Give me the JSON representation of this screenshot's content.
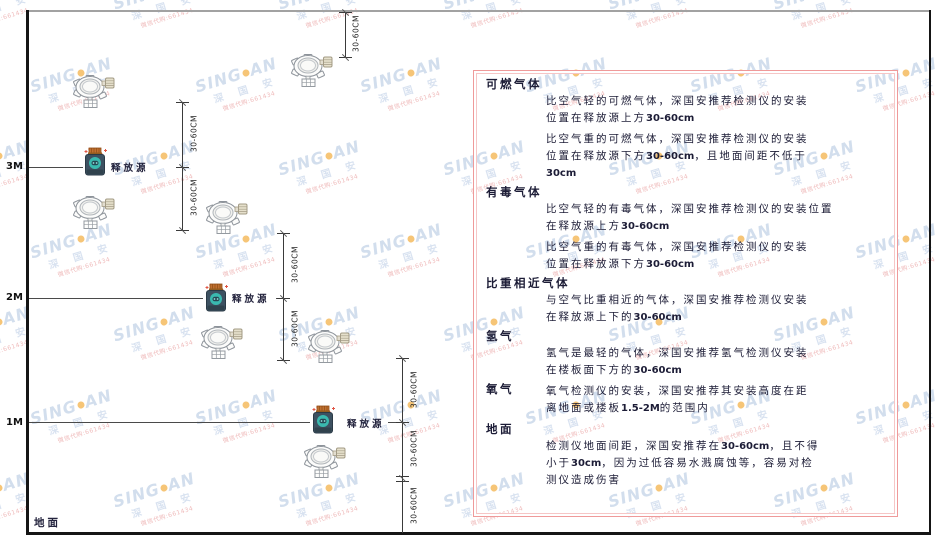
{
  "watermark": {
    "brand_a": "SING",
    "brand_b": "AN",
    "company": "深 国 安",
    "contact": "微信代购:661434"
  },
  "diagram": {
    "dimension_label": "30-60CM",
    "release_source_label": "释放源",
    "ground_label": "地面",
    "height_markers": [
      {
        "label": "3M"
      },
      {
        "label": "2M"
      },
      {
        "label": "1M"
      }
    ]
  },
  "panel": {
    "sections": [
      {
        "title": "可燃气体",
        "paragraphs": [
          "比空气轻的可燃气体，深国安推荐检测仪的安装\n位置在释放源上方30-60cm",
          "比空气重的可燃气体，深国安推荐检测仪的安装\n位置在释放源下方30-60cm，且地面间距不低于\n30cm"
        ]
      },
      {
        "title": "有毒气体",
        "paragraphs": [
          "比空气轻的有毒气体，深国安推荐检测仪的安装位置\n在释放源上方30-60cm",
          "比空气重的有毒气体，深国安推荐检测仪的安装\n位置在释放源下方30-60cm"
        ]
      },
      {
        "title": "比重相近气体",
        "paragraphs": [
          "与空气比重相近的气体，深国安推荐检测仪安装\n在释放源上下的30-60cm"
        ]
      },
      {
        "title": "氢气",
        "paragraphs": [
          "氢气是最轻的气体，深国安推荐氢气检测仪安装\n在楼板面下方的30-60cm"
        ]
      },
      {
        "title": "氧气",
        "inline": true,
        "paragraphs": [
          "氧气检测仪的安装，深国安推荐其安装高度在距\n离地面或楼板1.5-2M的范围内"
        ]
      },
      {
        "title": "地面",
        "paragraphs": [
          "检测仪地面间距，深国安推荐在30-60cm，且不得\n小于30cm，因为过低容易水溅腐蚀等，容易对检\n测仪造成伤害"
        ]
      }
    ]
  }
}
